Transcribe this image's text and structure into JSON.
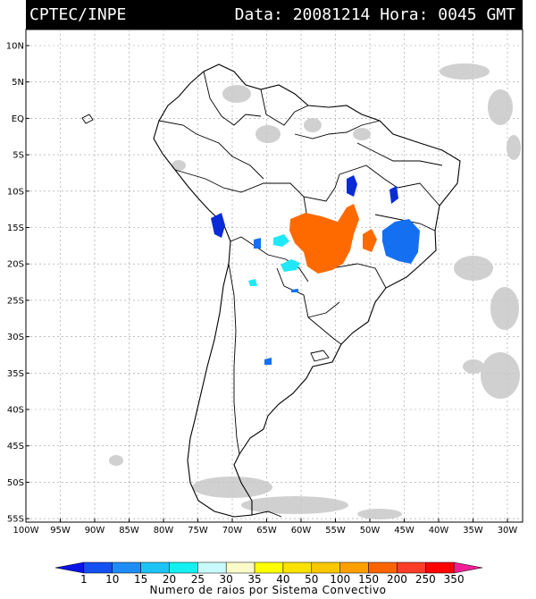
{
  "header": {
    "source": "CPTEC/INPE",
    "date_label": "Data:",
    "date_value": "20081214",
    "hour_label": "Hora:",
    "hour_value": "0045",
    "tz": "GMT"
  },
  "lat_labels": [
    "10N",
    "5N",
    "EQ",
    "5S",
    "10S",
    "15S",
    "20S",
    "25S",
    "30S",
    "35S",
    "40S",
    "45S",
    "50S",
    "55S"
  ],
  "lon_labels": [
    "100W",
    "95W",
    "90W",
    "85W",
    "80W",
    "75W",
    "70W",
    "65W",
    "60W",
    "55W",
    "50W",
    "45W",
    "40W",
    "35W",
    "30W"
  ],
  "legend": {
    "title": "Numero de raios por Sistema Convectivo",
    "ticks": [
      "1",
      "10",
      "15",
      "20",
      "25",
      "30",
      "35",
      "40",
      "50",
      "100",
      "150",
      "200",
      "250",
      "350"
    ],
    "colors": [
      "#0a14e6",
      "#1450f0",
      "#1e8cf5",
      "#1ec3f5",
      "#14f0f0",
      "#c8fafa",
      "#fafac8",
      "#ffff00",
      "#fae100",
      "#fac800",
      "#ffa000",
      "#fa6400",
      "#fa3c28",
      "#ff0000",
      "#f01e96"
    ]
  },
  "colors": {
    "orange": "#ff6a00",
    "dark_blue": "#0a2cd8",
    "medium_blue": "#1470f0",
    "cyan": "#20e8f8",
    "cloud_gray": "#c8c8c8"
  }
}
